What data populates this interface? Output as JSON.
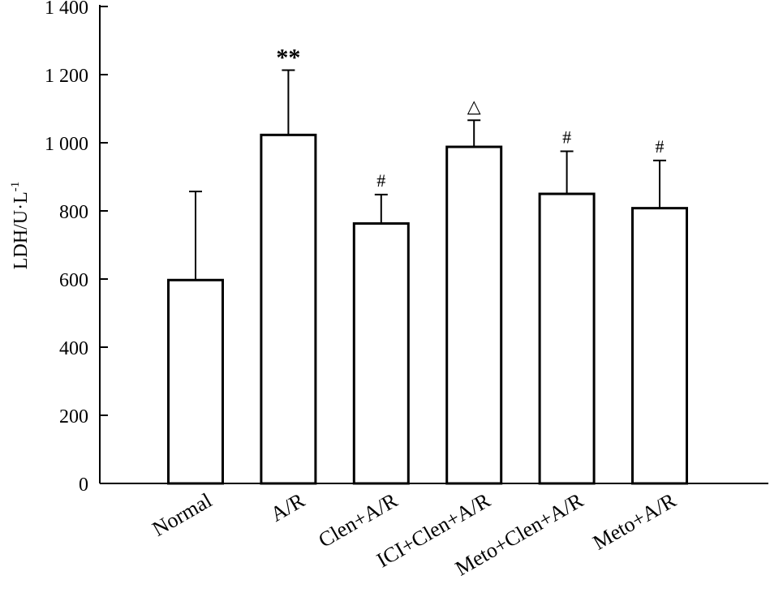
{
  "chart_data": {
    "type": "bar",
    "categories": [
      "Normal",
      "A/R",
      "Clen+A/R",
      "ICI+Clen+A/R",
      "Meto+Clen+A/R",
      "Meto+A/R"
    ],
    "values": [
      597,
      1023,
      763,
      988,
      850,
      808
    ],
    "errors": [
      260,
      190,
      85,
      78,
      125,
      140
    ],
    "annotations": [
      "",
      "**",
      "#",
      "△",
      "#",
      "#"
    ],
    "ylabel": "LDH/U·L",
    "ylabel_superscript": "-1",
    "xlabel": "",
    "title": "",
    "ylim": [
      0,
      1400
    ],
    "yticks": [
      0,
      200,
      400,
      600,
      800,
      1000,
      1200,
      1400
    ],
    "ytick_labels": [
      "0",
      "200",
      "400",
      "600",
      "800",
      "1 000",
      "1 200",
      "1 400"
    ],
    "grid": false,
    "legend": "none",
    "bar_fill": "#ffffff",
    "bar_stroke": "#000000"
  }
}
